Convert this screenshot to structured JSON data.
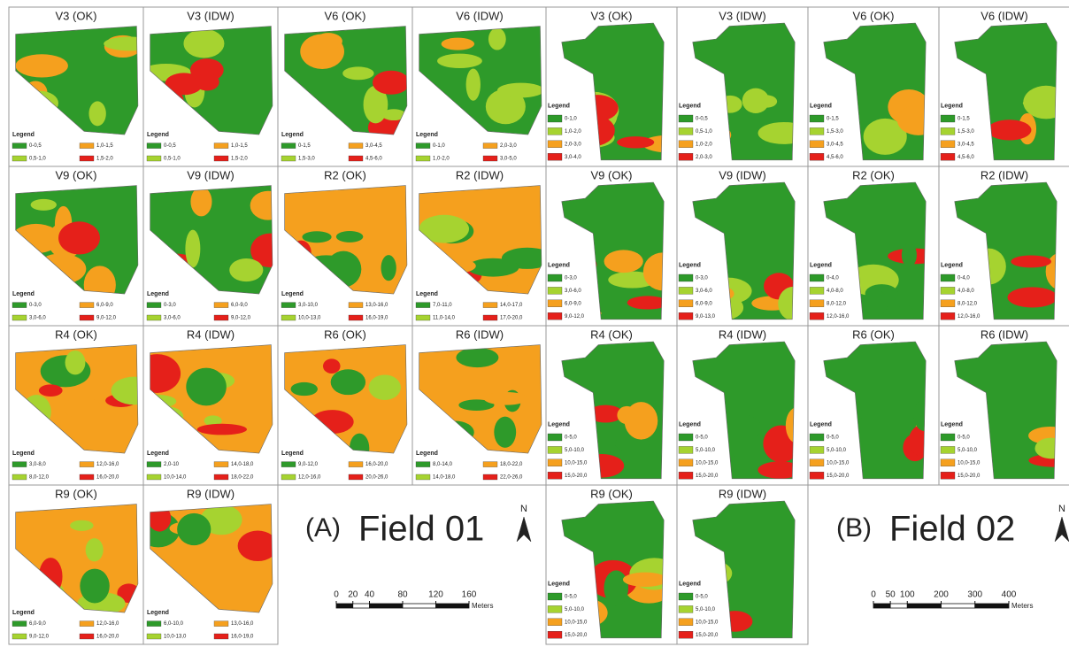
{
  "field_01": {
    "label": "(A)",
    "title": "Field 01",
    "north": "N",
    "legend_title": "Legend",
    "scale": {
      "ticks": [
        0,
        20,
        40,
        80,
        120,
        160
      ],
      "unit": "Meters"
    },
    "panels": [
      {
        "title": "V3 (OK)",
        "legend": [
          "0-0,5",
          "0,5-1,0",
          "1,0-1,5",
          "1,5-2,0"
        ]
      },
      {
        "title": "V3 (IDW)",
        "legend": [
          "0-0,5",
          "0,5-1,0",
          "1,0-1,5",
          "1,5-2,0"
        ]
      },
      {
        "title": "V6 (OK)",
        "legend": [
          "0-1,5",
          "1,5-3,0",
          "3,0-4,5",
          "4,5-6,0"
        ]
      },
      {
        "title": "V6 (IDW)",
        "legend": [
          "0-1,0",
          "1,0-2,0",
          "2,0-3,0",
          "3,0-5,0"
        ]
      },
      {
        "title": "V9 (OK)",
        "legend": [
          "0-3,0",
          "3,0-6,0",
          "6,0-9,0",
          "9,0-12,0"
        ]
      },
      {
        "title": "V9 (IDW)",
        "legend": [
          "0-3,0",
          "3,0-6,0",
          "6,0-9,0",
          "9,0-12,0"
        ]
      },
      {
        "title": "R2 (OK)",
        "legend": [
          "3,0-10,0",
          "10,0-13,0",
          "13,0-16,0",
          "16,0-19,0"
        ]
      },
      {
        "title": "R2 (IDW)",
        "legend": [
          "7,0-11,0",
          "11,0-14,0",
          "14,0-17,0",
          "17,0-20,0"
        ]
      },
      {
        "title": "R4 (OK)",
        "legend": [
          "3,0-8,0",
          "8,0-12,0",
          "12,0-16,0",
          "16,0-20,0"
        ]
      },
      {
        "title": "R4 (IDW)",
        "legend": [
          "2,0-10",
          "10,0-14,0",
          "14,0-18,0",
          "18,0-22,0"
        ]
      },
      {
        "title": "R6 (OK)",
        "legend": [
          "9,0-12,0",
          "12,0-16,0",
          "16,0-20,0",
          "20,0-26,0"
        ]
      },
      {
        "title": "R6 (IDW)",
        "legend": [
          "8,0-14,0",
          "14,0-18,0",
          "18,0-22,0",
          "22,0-26,0"
        ]
      },
      {
        "title": "R9 (OK)",
        "legend": [
          "6,0-9,0",
          "9,0-12,0",
          "12,0-16,0",
          "16,0-20,0"
        ]
      },
      {
        "title": "R9 (IDW)",
        "legend": [
          "6,0-10,0",
          "10,0-13,0",
          "13,0-16,0",
          "16,0-19,0"
        ]
      }
    ]
  },
  "field_02": {
    "label": "(B)",
    "title": "Field 02",
    "north": "N",
    "legend_title": "Legend",
    "scale": {
      "ticks": [
        0,
        50,
        100,
        200,
        300,
        400
      ],
      "unit": "Meters"
    },
    "panels": [
      {
        "title": "V3 (OK)",
        "legend": [
          "0-1,0",
          "1,0-2,0",
          "2,0-3,0",
          "3,0-4,0"
        ]
      },
      {
        "title": "V3 (IDW)",
        "legend": [
          "0-0,5",
          "0,5-1,0",
          "1,0-2,0",
          "2,0-3,0"
        ]
      },
      {
        "title": "V6 (OK)",
        "legend": [
          "0-1,5",
          "1,5-3,0",
          "3,0-4,5",
          "4,5-6,0"
        ]
      },
      {
        "title": "V6 (IDW)",
        "legend": [
          "0-1,5",
          "1,5-3,0",
          "3,0-4,5",
          "4,5-6,0"
        ]
      },
      {
        "title": "V9 (OK)",
        "legend": [
          "0-3,0",
          "3,0-6,0",
          "6,0-9,0",
          "9,0-12,0"
        ]
      },
      {
        "title": "V9 (IDW)",
        "legend": [
          "0-3,0",
          "3,0-6,0",
          "6,0-9,0",
          "9,0-13,0"
        ]
      },
      {
        "title": "R2 (OK)",
        "legend": [
          "0-4,0",
          "4,0-8,0",
          "8,0-12,0",
          "12,0-16,0"
        ]
      },
      {
        "title": "R2 (IDW)",
        "legend": [
          "0-4,0",
          "4,0-8,0",
          "8,0-12,0",
          "12,0-16,0"
        ]
      },
      {
        "title": "R4 (OK)",
        "legend": [
          "0-5,0",
          "5,0-10,0",
          "10,0-15,0",
          "15,0-20,0"
        ]
      },
      {
        "title": "R4 (IDW)",
        "legend": [
          "0-5,0",
          "5,0-10,0",
          "10,0-15,0",
          "15,0-20,0"
        ]
      },
      {
        "title": "R6 (OK)",
        "legend": [
          "0-5,0",
          "5,0-10,0",
          "10,0-15,0",
          "15,0-20,0"
        ]
      },
      {
        "title": "R6 (IDW)",
        "legend": [
          "0-5,0",
          "5,0-10,0",
          "10,0-15,0",
          "15,0-20,0"
        ]
      },
      {
        "title": "R9 (OK)",
        "legend": [
          "0-5,0",
          "5,0-10,0",
          "10,0-15,0",
          "15,0-20,0"
        ]
      },
      {
        "title": "R9 (IDW)",
        "legend": [
          "0-5,0",
          "5,0-10,0",
          "10,0-15,0",
          "15,0-20,0"
        ]
      }
    ]
  }
}
